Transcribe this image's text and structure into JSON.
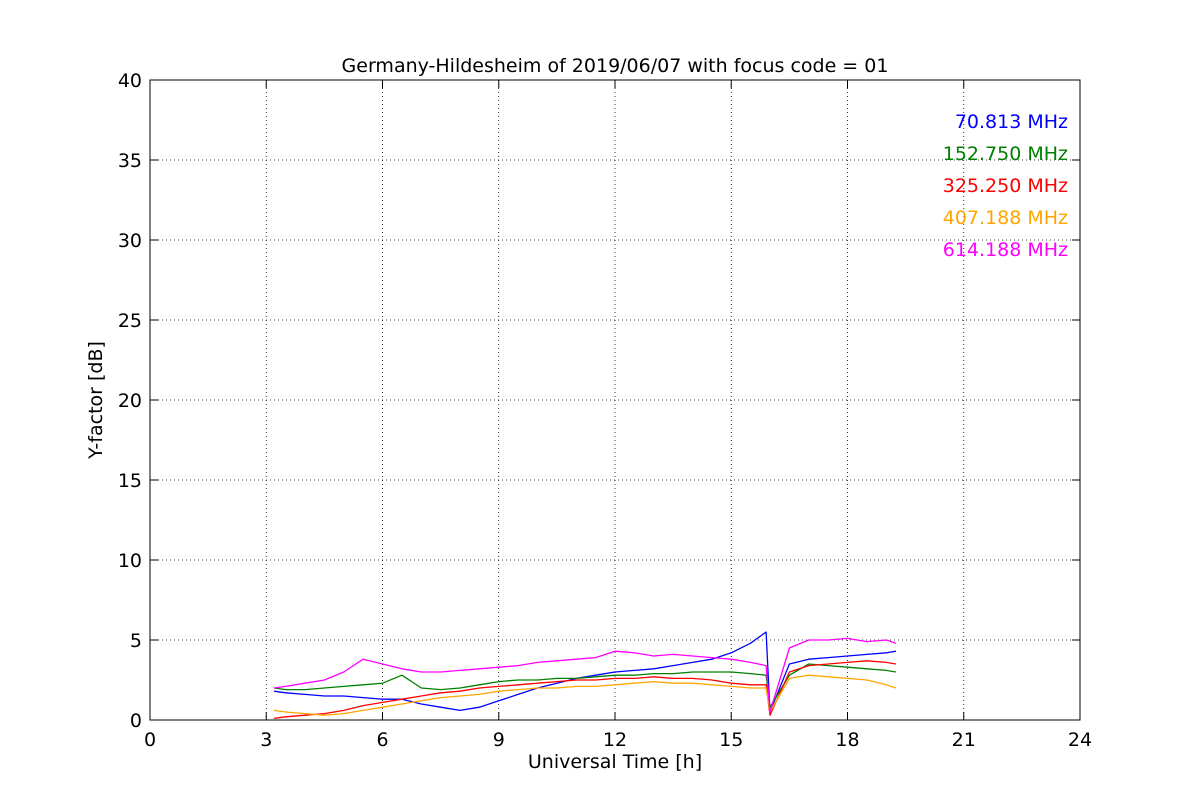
{
  "chart_data": {
    "type": "line",
    "title": "Germany-Hildesheim of 2019/06/07 with focus code = 01",
    "xlabel": "Universal Time [h]",
    "ylabel": "Y-factor [dB]",
    "xlim": [
      0,
      24
    ],
    "ylim": [
      0,
      40
    ],
    "xticks": [
      0,
      3,
      6,
      9,
      12,
      15,
      18,
      21,
      24
    ],
    "yticks": [
      0,
      5,
      10,
      15,
      20,
      25,
      30,
      35,
      40
    ],
    "xtick_labels": [
      "0",
      "3",
      "6",
      "9",
      "12",
      "15",
      "18",
      "21",
      "24"
    ],
    "ytick_labels": [
      "0",
      "5",
      "10",
      "15",
      "20",
      "25",
      "30",
      "35",
      "40"
    ],
    "grid": true,
    "legend_position": "top-right",
    "series": [
      {
        "name": "70.813 MHz",
        "color": "#0000ff",
        "x": [
          3.2,
          3.5,
          4.0,
          4.5,
          5.0,
          5.5,
          6.0,
          6.5,
          7.0,
          7.5,
          8.0,
          8.5,
          9.0,
          9.5,
          10.0,
          10.5,
          11.0,
          11.5,
          12.0,
          12.5,
          13.0,
          13.5,
          14.0,
          14.5,
          15.0,
          15.5,
          15.9,
          16.0,
          16.5,
          17.0,
          17.5,
          18.0,
          18.5,
          19.0,
          19.25
        ],
        "y": [
          1.8,
          1.7,
          1.6,
          1.5,
          1.5,
          1.4,
          1.3,
          1.3,
          1.0,
          0.8,
          0.6,
          0.8,
          1.2,
          1.6,
          2.0,
          2.3,
          2.6,
          2.8,
          3.0,
          3.1,
          3.2,
          3.4,
          3.6,
          3.8,
          4.2,
          4.8,
          5.5,
          0.5,
          3.5,
          3.8,
          3.9,
          4.0,
          4.1,
          4.2,
          4.3
        ]
      },
      {
        "name": "152.750 MHz",
        "color": "#008000",
        "x": [
          3.2,
          3.5,
          4.0,
          4.5,
          5.0,
          5.5,
          6.0,
          6.5,
          7.0,
          7.5,
          8.0,
          8.5,
          9.0,
          9.5,
          10.0,
          10.5,
          11.0,
          11.5,
          12.0,
          12.5,
          13.0,
          13.5,
          14.0,
          14.5,
          15.0,
          15.5,
          15.9,
          16.0,
          16.5,
          17.0,
          17.5,
          18.0,
          18.5,
          19.0,
          19.25
        ],
        "y": [
          2.0,
          1.9,
          1.9,
          2.0,
          2.1,
          2.2,
          2.3,
          2.8,
          2.0,
          1.9,
          2.0,
          2.2,
          2.4,
          2.5,
          2.5,
          2.6,
          2.6,
          2.7,
          2.8,
          2.8,
          2.9,
          2.9,
          3.0,
          3.0,
          3.0,
          2.9,
          2.8,
          0.8,
          2.8,
          3.5,
          3.4,
          3.3,
          3.2,
          3.1,
          3.0
        ]
      },
      {
        "name": "325.250 MHz",
        "color": "#ff0000",
        "x": [
          3.2,
          3.5,
          4.0,
          4.5,
          5.0,
          5.5,
          6.0,
          6.5,
          7.0,
          7.5,
          8.0,
          8.5,
          9.0,
          9.5,
          10.0,
          10.5,
          11.0,
          11.5,
          12.0,
          12.5,
          13.0,
          13.5,
          14.0,
          14.5,
          15.0,
          15.5,
          15.9,
          16.0,
          16.5,
          17.0,
          17.5,
          18.0,
          18.5,
          19.0,
          19.25
        ],
        "y": [
          0.1,
          0.2,
          0.3,
          0.4,
          0.6,
          0.9,
          1.1,
          1.3,
          1.5,
          1.7,
          1.8,
          2.0,
          2.1,
          2.2,
          2.3,
          2.4,
          2.5,
          2.5,
          2.6,
          2.6,
          2.7,
          2.6,
          2.6,
          2.5,
          2.3,
          2.2,
          2.2,
          0.3,
          3.0,
          3.4,
          3.5,
          3.6,
          3.7,
          3.6,
          3.5
        ]
      },
      {
        "name": "407.188 MHz",
        "color": "#ffa500",
        "x": [
          3.2,
          3.5,
          4.0,
          4.5,
          5.0,
          5.5,
          6.0,
          6.5,
          7.0,
          7.5,
          8.0,
          8.5,
          9.0,
          9.5,
          10.0,
          10.5,
          11.0,
          11.5,
          12.0,
          12.5,
          13.0,
          13.5,
          14.0,
          14.5,
          15.0,
          15.5,
          15.9,
          16.0,
          16.5,
          17.0,
          17.5,
          18.0,
          18.5,
          19.0,
          19.25
        ],
        "y": [
          0.6,
          0.5,
          0.4,
          0.3,
          0.4,
          0.6,
          0.8,
          1.0,
          1.2,
          1.4,
          1.5,
          1.6,
          1.8,
          1.9,
          2.0,
          2.0,
          2.1,
          2.1,
          2.2,
          2.3,
          2.4,
          2.3,
          2.3,
          2.2,
          2.1,
          2.0,
          2.0,
          0.5,
          2.6,
          2.8,
          2.7,
          2.6,
          2.5,
          2.2,
          2.0
        ]
      },
      {
        "name": "614.188 MHz",
        "color": "#ff00ff",
        "x": [
          3.2,
          3.5,
          4.0,
          4.5,
          5.0,
          5.5,
          6.0,
          6.5,
          7.0,
          7.5,
          8.0,
          8.5,
          9.0,
          9.5,
          10.0,
          10.5,
          11.0,
          11.5,
          12.0,
          12.5,
          13.0,
          13.5,
          14.0,
          14.5,
          15.0,
          15.5,
          15.9,
          16.0,
          16.5,
          17.0,
          17.5,
          18.0,
          18.5,
          19.0,
          19.25
        ],
        "y": [
          2.0,
          2.1,
          2.3,
          2.5,
          3.0,
          3.8,
          3.5,
          3.2,
          3.0,
          3.0,
          3.1,
          3.2,
          3.3,
          3.4,
          3.6,
          3.7,
          3.8,
          3.9,
          4.3,
          4.2,
          4.0,
          4.1,
          4.0,
          3.9,
          3.8,
          3.6,
          3.4,
          0.5,
          4.5,
          5.0,
          5.0,
          5.1,
          4.9,
          5.0,
          4.8
        ]
      }
    ]
  }
}
